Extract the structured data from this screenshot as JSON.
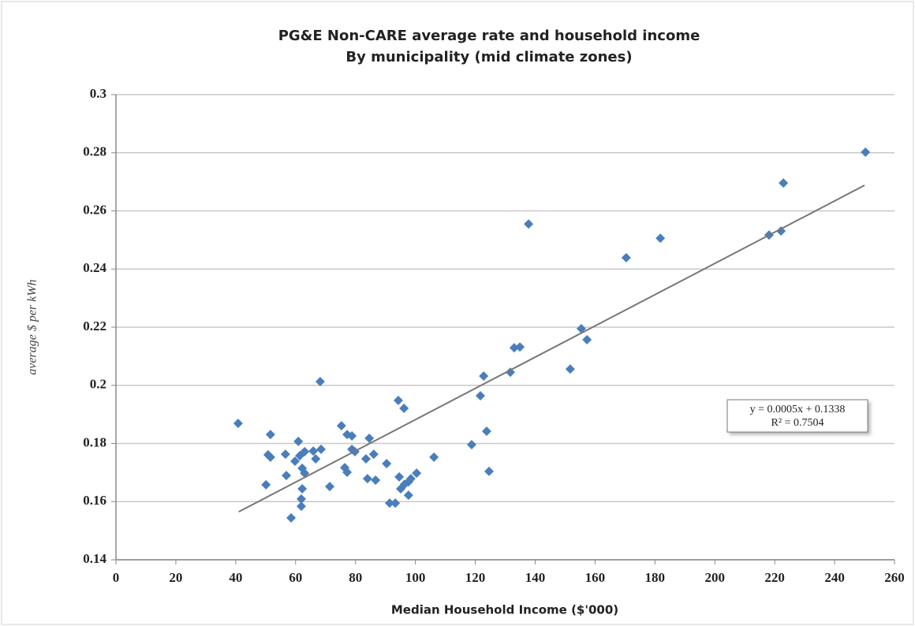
{
  "chart_data": {
    "type": "scatter",
    "title": "PG&E Non-CARE average rate and household income",
    "subtitle": "By municipality (mid climate zones)",
    "x_label": "Median Household Income ($'000)",
    "y_label": "average $ per kWh",
    "color": "#4a7ebb",
    "x": [
      40.8,
      51.6,
      50.8,
      51.6,
      50.1,
      56.6,
      56.9,
      58.5,
      60.9,
      59.8,
      61.4,
      63.0,
      62.2,
      63.0,
      62.2,
      61.9,
      61.9,
      65.9,
      66.7,
      68.5,
      68.2,
      71.4,
      75.3,
      76.4,
      77.2,
      77.2,
      78.8,
      78.8,
      79.8,
      83.5,
      84.6,
      86.1,
      84.0,
      86.7,
      90.4,
      91.4,
      93.3,
      94.3,
      96.2,
      94.6,
      95.1,
      96.4,
      97.7,
      98.5,
      97.7,
      100.4,
      106.2,
      118.8,
      121.7,
      122.8,
      123.8,
      124.6,
      131.7,
      133.0,
      134.9,
      137.8,
      151.7,
      155.4,
      157.3,
      170.4,
      181.8,
      218.1,
      222.1,
      222.9,
      250.3
    ],
    "y": [
      0.1869,
      0.1831,
      0.1761,
      0.1753,
      0.1658,
      0.1763,
      0.169,
      0.1544,
      0.1807,
      0.1739,
      0.1758,
      0.1772,
      0.1715,
      0.1698,
      0.1644,
      0.1609,
      0.1584,
      0.1774,
      0.1747,
      0.178,
      0.2013,
      0.1652,
      0.1861,
      0.1717,
      0.1701,
      0.1831,
      0.1826,
      0.178,
      0.1772,
      0.1747,
      0.1818,
      0.1763,
      0.1679,
      0.1674,
      0.1731,
      0.1595,
      0.1595,
      0.1948,
      0.1921,
      0.1685,
      0.1644,
      0.166,
      0.1668,
      0.1679,
      0.1622,
      0.1698,
      0.1753,
      0.1796,
      0.1964,
      0.2032,
      0.1842,
      0.1704,
      0.2045,
      0.2129,
      0.2132,
      0.2555,
      0.2056,
      0.2195,
      0.2157,
      0.2439,
      0.2506,
      0.2517,
      0.2531,
      0.2696,
      0.2802
    ],
    "trendline": {
      "x": [
        41,
        250
      ],
      "y": [
        0.1565,
        0.2688
      ]
    },
    "annotation": [
      "y = 0.0005x + 0.1338",
      "R² = 0.7504"
    ],
    "xlim": [
      0,
      260
    ],
    "xticks": [
      0,
      20,
      40,
      60,
      80,
      100,
      120,
      140,
      160,
      180,
      200,
      220,
      240,
      260
    ],
    "ylim": [
      0.14,
      0.3
    ],
    "yticks": [
      0.14,
      0.16,
      0.18,
      0.2,
      0.22,
      0.24,
      0.26,
      0.28,
      0.3
    ],
    "grid": true
  }
}
